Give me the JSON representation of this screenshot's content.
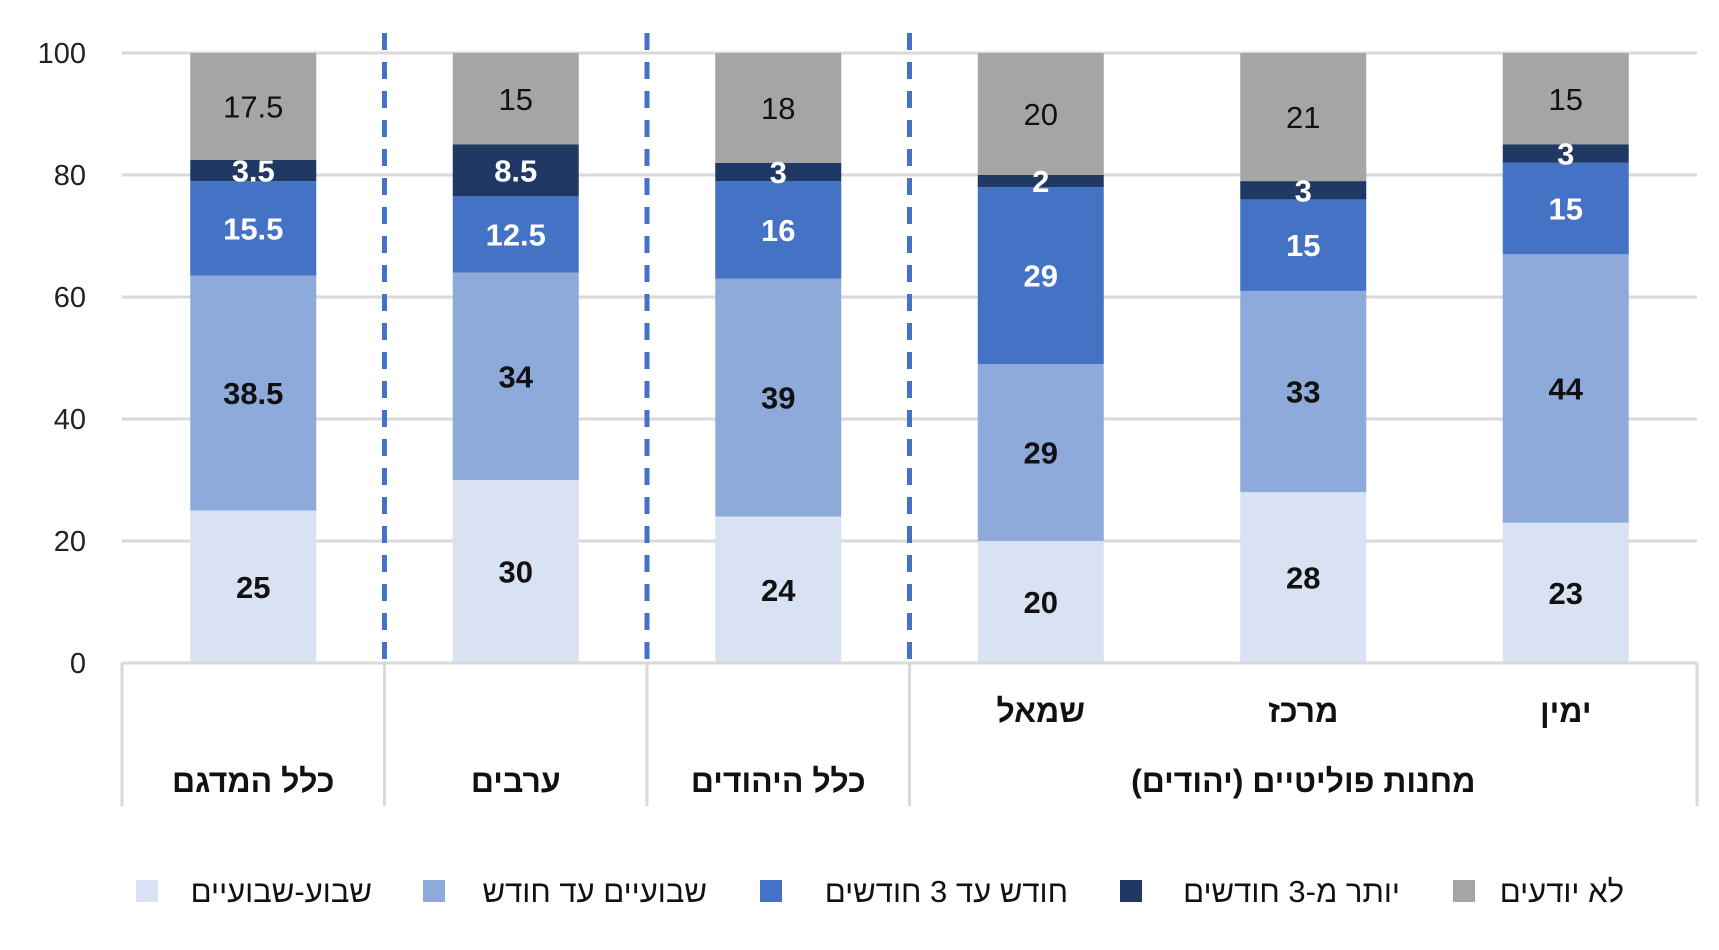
{
  "chart_data": {
    "type": "bar",
    "stacked": true,
    "ylim": [
      0,
      100
    ],
    "yticks": [
      0,
      20,
      40,
      60,
      80,
      100
    ],
    "grid": true,
    "legend_position": "bottom",
    "categories": [
      "כלל המדגם",
      "ערבים",
      "כלל היהודים",
      "שמאל",
      "מרכז",
      "ימין"
    ],
    "group_labels": [
      {
        "label": "כלל המדגם",
        "from": 0,
        "to": 0
      },
      {
        "label": "ערבים",
        "from": 1,
        "to": 1
      },
      {
        "label": "כלל היהודים",
        "from": 2,
        "to": 2
      },
      {
        "label": "מחנות פוליטיים (יהודים)",
        "from": 3,
        "to": 5
      }
    ],
    "sub_labels": [
      "",
      "",
      "",
      "שמאל",
      "מרכז",
      "ימין"
    ],
    "series": [
      {
        "name": "שבוע-שבועיים",
        "color": "#d9e2f3",
        "label_color": "#111111",
        "values": [
          25,
          30,
          24,
          20,
          28,
          23
        ]
      },
      {
        "name": "שבועיים עד חודש",
        "color": "#8eaadb",
        "label_color": "#111111",
        "values": [
          38.5,
          34,
          39,
          29,
          33,
          44
        ]
      },
      {
        "name": "חודש עד 3 חודשים",
        "color": "#4472c4",
        "label_color": "#ffffff",
        "values": [
          15.5,
          12.5,
          16,
          29,
          15,
          15
        ]
      },
      {
        "name": "יותר מ-3 חודשים",
        "color": "#203864",
        "label_color": "#ffffff",
        "values": [
          3.5,
          8.5,
          3,
          2,
          3,
          3
        ]
      },
      {
        "name": "לא יודעים",
        "color": "#a5a5a5",
        "label_color": "#111111",
        "values": [
          17.5,
          15,
          18,
          20,
          21,
          15
        ]
      }
    ]
  }
}
